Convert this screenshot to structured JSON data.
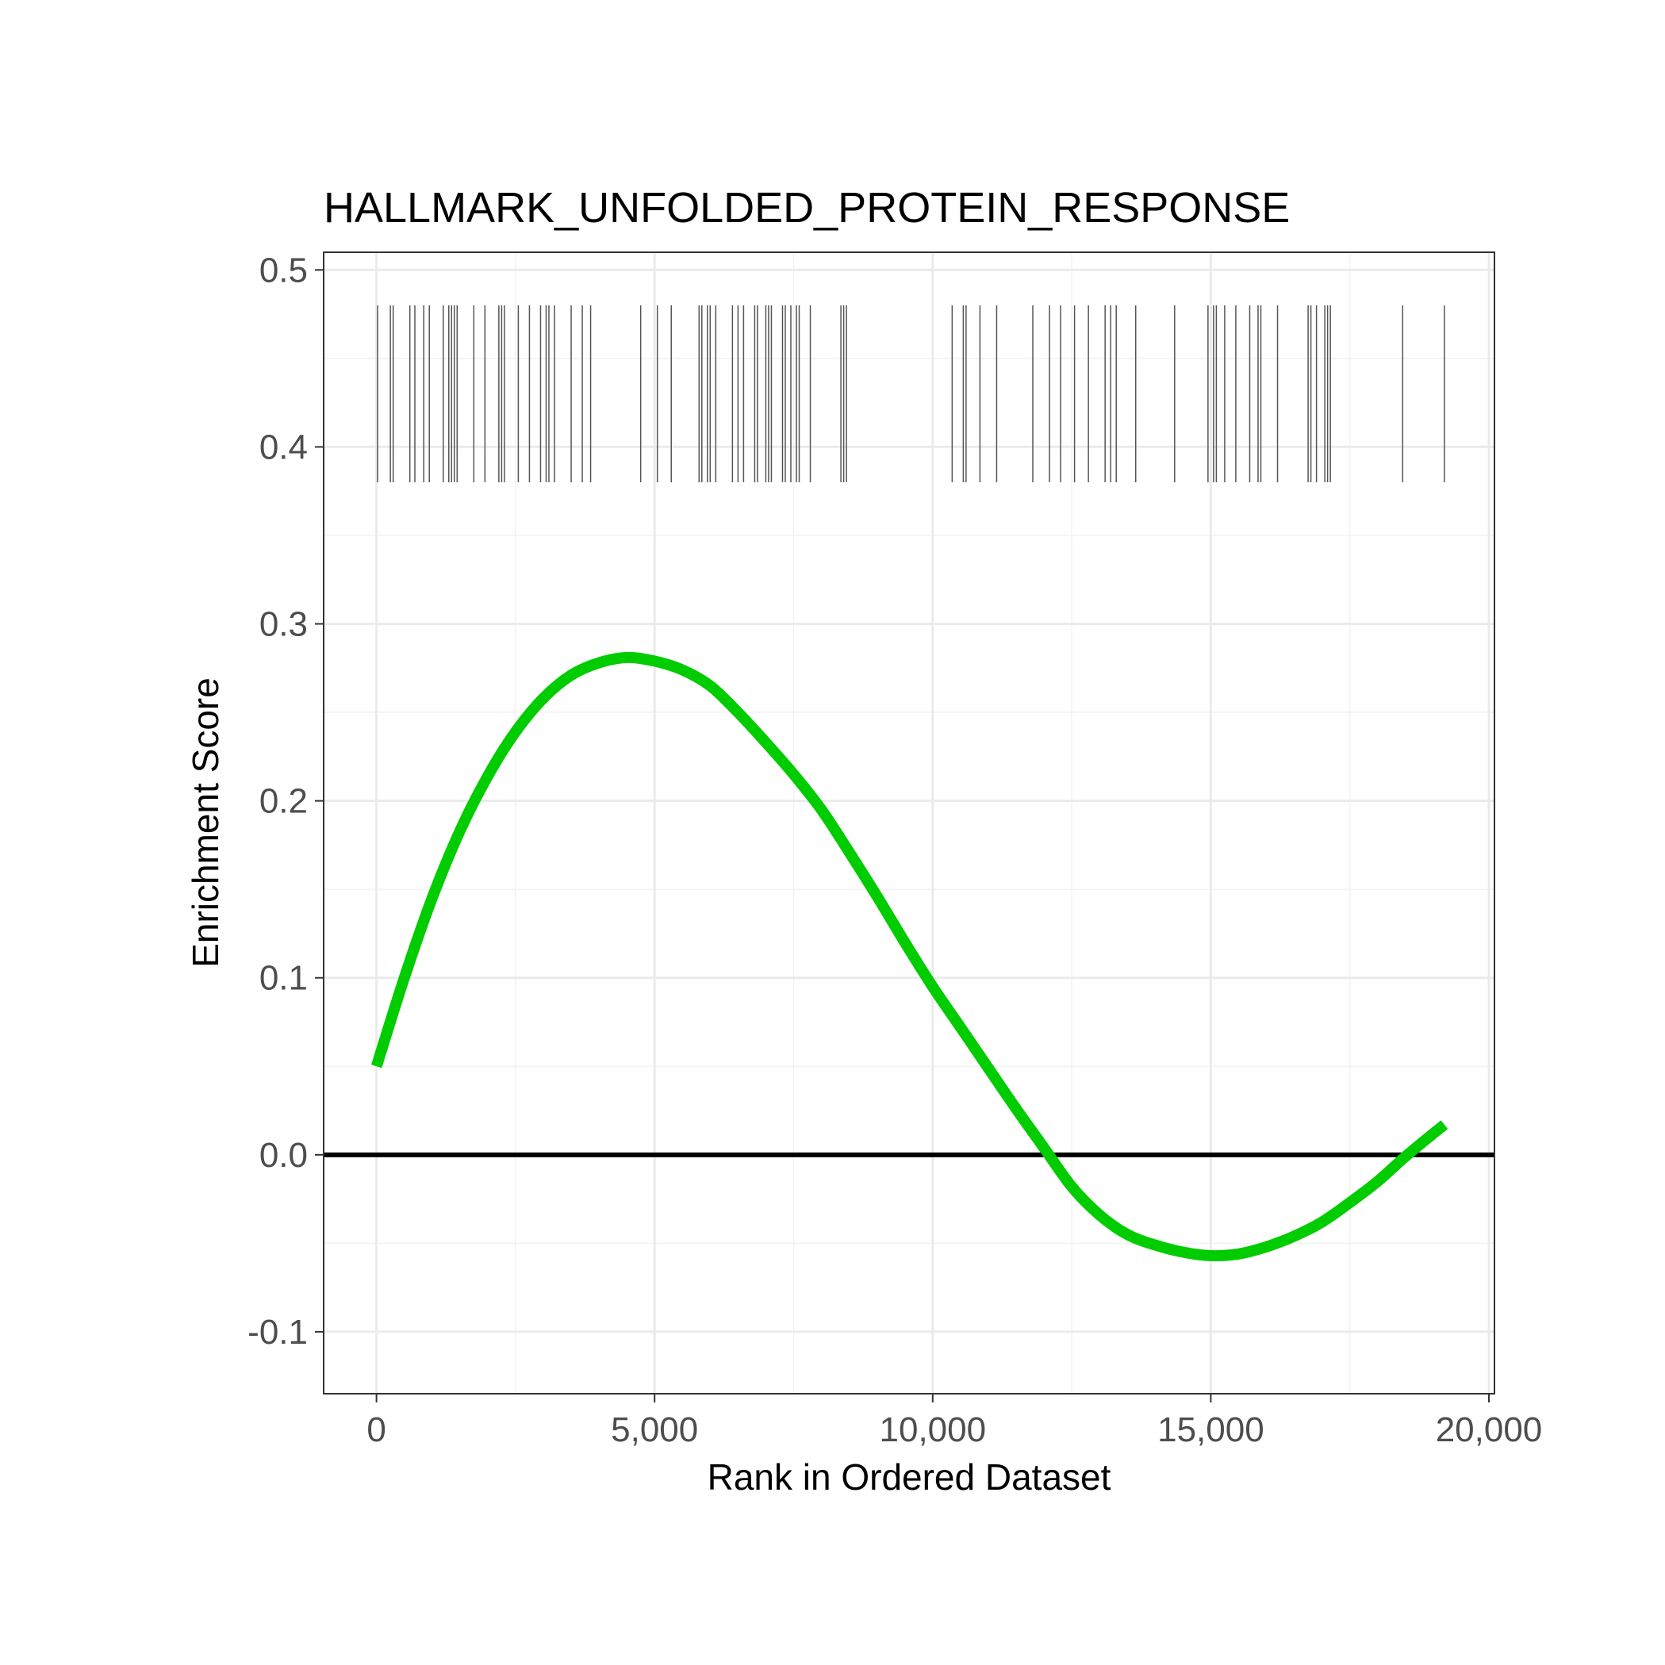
{
  "chart_data": {
    "type": "line",
    "title": "HALLMARK_UNFOLDED_PROTEIN_RESPONSE",
    "xlabel": "Rank in Ordered Dataset",
    "ylabel": "Enrichment Score",
    "xlim": [
      -950,
      20100
    ],
    "ylim": [
      -0.135,
      0.51
    ],
    "x_ticks": [
      0,
      5000,
      10000,
      15000,
      20000
    ],
    "x_tick_labels": [
      "0",
      "5,000",
      "10,000",
      "15,000",
      "20,000"
    ],
    "y_ticks": [
      -0.1,
      0.0,
      0.1,
      0.2,
      0.3,
      0.4,
      0.5
    ],
    "y_tick_labels": [
      "-0.1",
      "0.0",
      "0.1",
      "0.2",
      "0.3",
      "0.4",
      "0.5"
    ],
    "grid": true,
    "legend": "none",
    "line_color": "#00CC00",
    "zero_line_color": "#000000",
    "rug_color": "#555555",
    "rug_y_range": [
      0.38,
      0.48
    ],
    "series": [
      {
        "x": [
          0,
          500,
          1000,
          1500,
          2000,
          2500,
          3000,
          3500,
          4000,
          4500,
          5000,
          5500,
          6000,
          6500,
          7000,
          7500,
          8000,
          8500,
          9000,
          9500,
          10000,
          10500,
          11000,
          11500,
          12000,
          12500,
          13000,
          13500,
          14000,
          14500,
          15000,
          15500,
          16000,
          16500,
          17000,
          17500,
          18000,
          18500,
          19000,
          19200
        ],
        "y": [
          0.05,
          0.1,
          0.145,
          0.183,
          0.214,
          0.239,
          0.258,
          0.271,
          0.278,
          0.281,
          0.279,
          0.274,
          0.265,
          0.25,
          0.233,
          0.215,
          0.195,
          0.171,
          0.146,
          0.12,
          0.095,
          0.072,
          0.049,
          0.026,
          0.004,
          -0.018,
          -0.034,
          -0.045,
          -0.051,
          -0.055,
          -0.057,
          -0.056,
          -0.052,
          -0.046,
          -0.038,
          -0.027,
          -0.015,
          -0.001,
          0.012,
          0.017
        ]
      }
    ],
    "hits": [
      20,
      250,
      300,
      600,
      690,
      850,
      950,
      1200,
      1300,
      1350,
      1400,
      1450,
      1750,
      1950,
      2200,
      2250,
      2300,
      2550,
      2750,
      2950,
      3050,
      3100,
      3200,
      3500,
      3700,
      3850,
      4750,
      5050,
      5300,
      5800,
      5850,
      5950,
      6000,
      6100,
      6400,
      6500,
      6600,
      6800,
      6850,
      7000,
      7050,
      7100,
      7300,
      7350,
      7450,
      7550,
      7600,
      7800,
      8350,
      8400,
      8450,
      10350,
      10550,
      10600,
      10850,
      11150,
      11800,
      12100,
      12300,
      12550,
      12800,
      13100,
      13200,
      13300,
      13650,
      14350,
      14950,
      15050,
      15100,
      15250,
      15450,
      15700,
      15850,
      15900,
      16200,
      16750,
      16800,
      16900,
      17050,
      17100,
      17150,
      18450,
      19200
    ]
  }
}
